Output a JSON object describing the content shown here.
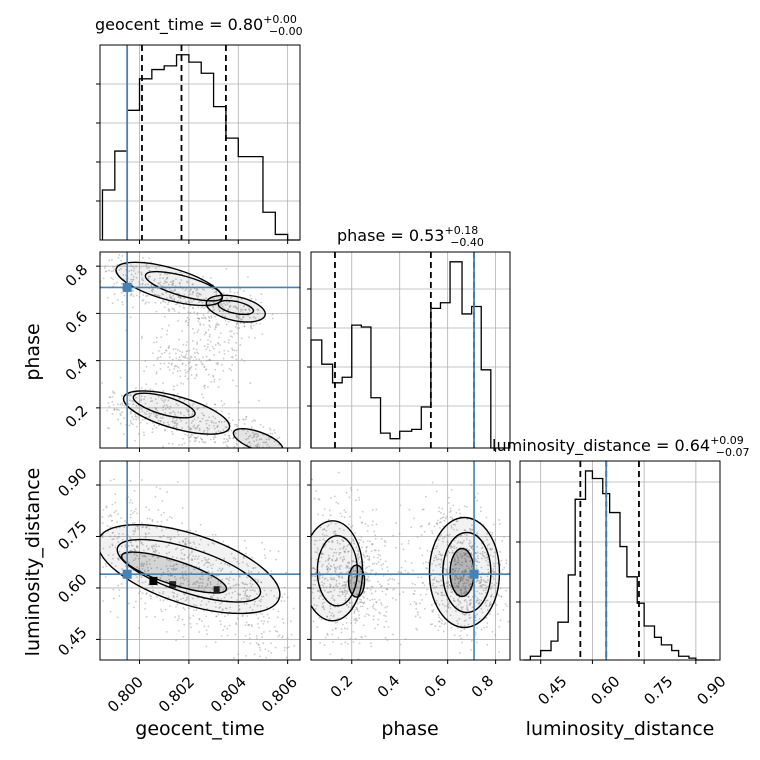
{
  "figure": {
    "kind": "corner plot"
  },
  "colors": {
    "truth": "#4682b4",
    "hist": "#000000",
    "grid": "#b0b0b0",
    "scatter": "#8c8c8c"
  },
  "chart_data": [
    {
      "type": "line",
      "panel": "geocent_time histogram",
      "title": {
        "main": "geocent_time = 0.80",
        "sup": "+0.00",
        "sub": "−0.00"
      },
      "xlim": [
        0.7984,
        0.8065
      ],
      "bins": [
        0.7985,
        0.799,
        0.7995,
        0.8,
        0.8005,
        0.801,
        0.8015,
        0.802,
        0.8025,
        0.803,
        0.8035,
        0.804,
        0.8045,
        0.805,
        0.8055,
        0.806
      ],
      "counts": [
        0.27,
        0.48,
        0.7,
        0.87,
        0.92,
        0.94,
        1.0,
        0.96,
        0.9,
        0.72,
        0.55,
        0.45,
        0.45,
        0.15,
        0.03,
        0.0
      ],
      "quantiles": [
        0.8001,
        0.8017,
        0.8035
      ],
      "truth": 0.7995
    },
    {
      "type": "line",
      "panel": "phase histogram",
      "title": {
        "main": "phase = 0.53",
        "sup": "+0.18",
        "sub": "−0.40"
      },
      "xlim": [
        0.03,
        0.86
      ],
      "bins": [
        0.03,
        0.075,
        0.12,
        0.16,
        0.2,
        0.24,
        0.28,
        0.32,
        0.36,
        0.4,
        0.45,
        0.49,
        0.53,
        0.57,
        0.61,
        0.66,
        0.7,
        0.74,
        0.78,
        0.82
      ],
      "counts": [
        0.58,
        0.45,
        0.35,
        0.38,
        0.66,
        0.65,
        0.27,
        0.08,
        0.05,
        0.09,
        0.1,
        0.22,
        0.75,
        0.78,
        1.0,
        0.72,
        0.76,
        0.42,
        0.0,
        0.0
      ],
      "quantiles": [
        0.13,
        0.53,
        0.71
      ],
      "truth": 0.71
    },
    {
      "type": "line",
      "panel": "luminosity_distance histogram",
      "title": {
        "main": "luminosity_distance = 0.64",
        "sup": "+0.09",
        "sub": "−0.07"
      },
      "xlim": [
        0.39,
        0.97
      ],
      "bins": [
        0.4,
        0.42,
        0.45,
        0.48,
        0.5,
        0.53,
        0.55,
        0.58,
        0.6,
        0.63,
        0.65,
        0.68,
        0.7,
        0.73,
        0.75,
        0.78,
        0.8,
        0.83,
        0.85,
        0.88,
        0.9,
        0.93
      ],
      "counts": [
        0.0,
        0.02,
        0.05,
        0.1,
        0.2,
        0.45,
        0.85,
        1.0,
        0.96,
        0.88,
        0.78,
        0.6,
        0.44,
        0.3,
        0.18,
        0.12,
        0.08,
        0.05,
        0.02,
        0.01,
        0.0,
        0.0
      ],
      "quantiles": [
        0.565,
        0.64,
        0.735
      ],
      "truth": 0.64
    },
    {
      "type": "scatter",
      "panel": "phase vs geocent_time",
      "xlim": [
        0.7984,
        0.8065
      ],
      "ylim": [
        0.03,
        0.86
      ],
      "ylabel": "phase",
      "yticks": [
        "0.2",
        "0.4",
        "0.6",
        "0.8"
      ],
      "truth": [
        0.7995,
        0.71
      ]
    },
    {
      "type": "scatter",
      "panel": "luminosity_distance vs geocent_time",
      "xlim": [
        0.7984,
        0.8065
      ],
      "ylim": [
        0.39,
        0.97
      ],
      "xlabel": "geocent_time",
      "ylabel": "luminosity_distance",
      "xticks": [
        "0.800",
        "0.802",
        "0.804",
        "0.806"
      ],
      "yticks": [
        "0.45",
        "0.60",
        "0.75",
        "0.90"
      ],
      "truth": [
        0.7995,
        0.64
      ]
    },
    {
      "type": "scatter",
      "panel": "luminosity_distance vs phase",
      "xlim": [
        0.03,
        0.86
      ],
      "ylim": [
        0.39,
        0.97
      ],
      "xlabel": "phase",
      "xticks": [
        "0.2",
        "0.4",
        "0.6",
        "0.8"
      ],
      "truth": [
        0.71,
        0.64
      ]
    }
  ],
  "bottom_right_xticks": [
    "0.45",
    "0.60",
    "0.75",
    "0.90"
  ],
  "bottom_right_xlabel": "luminosity_distance"
}
